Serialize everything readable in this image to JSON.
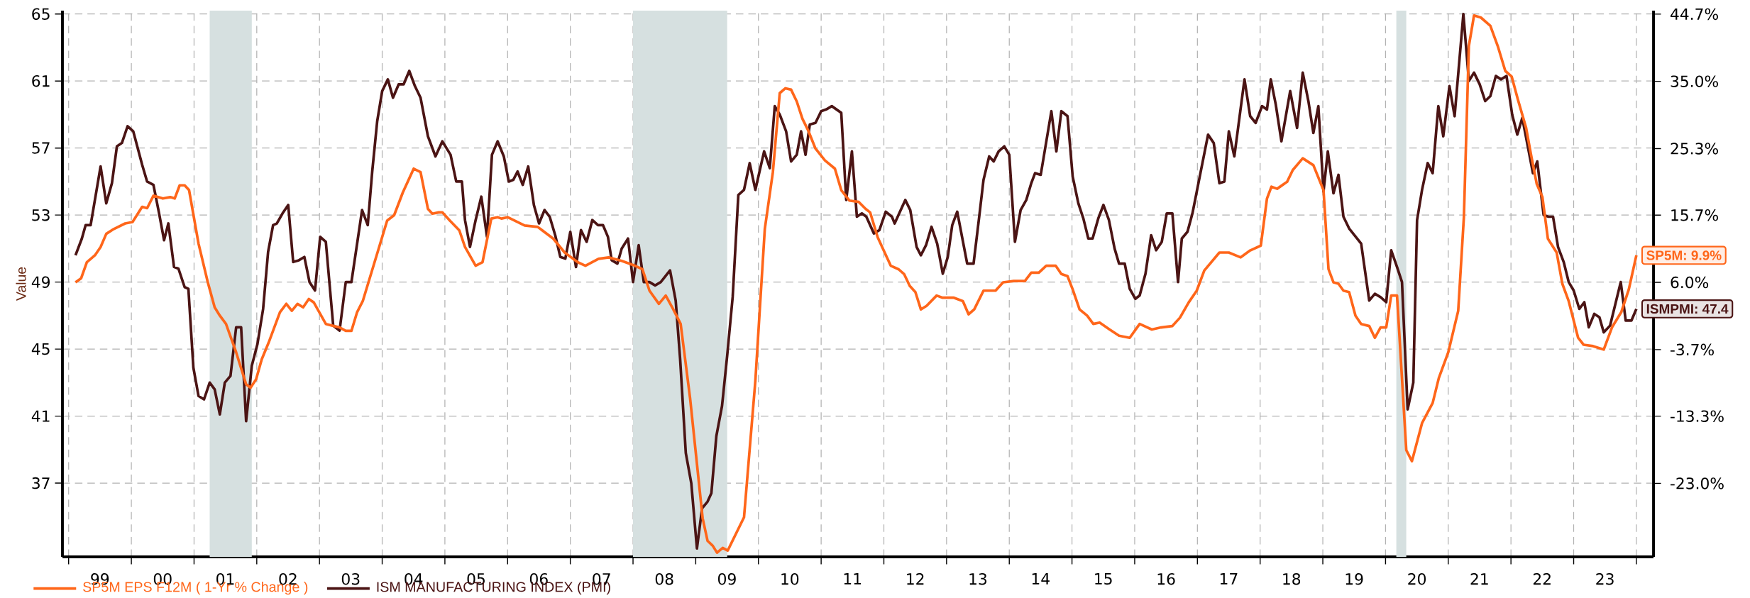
{
  "chart_data": {
    "type": "line",
    "ylabel": "Value",
    "xlim": [
      "1998-11-26",
      "2024-04-10"
    ],
    "ylim": [
      32.6,
      65.2
    ],
    "y2lim": [
      -33.6,
      45.2
    ],
    "xticks": [
      {
        "value": "1999-01-01",
        "label": null
      },
      {
        "value": "2000-01-01",
        "label": null
      },
      {
        "value": "2001-01-01",
        "label": null
      },
      {
        "value": "2002-01-01",
        "label": null
      },
      {
        "value": "2003-01-01",
        "label": null
      },
      {
        "value": "2004-01-01",
        "label": null
      },
      {
        "value": "2005-01-01",
        "label": null
      },
      {
        "value": "2006-01-01",
        "label": null
      },
      {
        "value": "2007-01-01",
        "label": null
      },
      {
        "value": "2008-01-01",
        "label": null
      },
      {
        "value": "2009-01-01",
        "label": null
      },
      {
        "value": "2010-01-01",
        "label": null
      },
      {
        "value": "2011-01-01",
        "label": null
      },
      {
        "value": "2012-01-01",
        "label": null
      },
      {
        "value": "2013-01-01",
        "label": null
      },
      {
        "value": "2014-01-01",
        "label": null
      },
      {
        "value": "2015-01-01",
        "label": null
      },
      {
        "value": "2016-01-01",
        "label": null
      },
      {
        "value": "2017-01-01",
        "label": null
      },
      {
        "value": "2018-01-01",
        "label": null
      },
      {
        "value": "2019-01-01",
        "label": null
      },
      {
        "value": "2020-01-01",
        "label": null
      },
      {
        "value": "2021-01-01",
        "label": null
      },
      {
        "value": "2022-01-01",
        "label": null
      },
      {
        "value": "2023-01-01",
        "label": null
      },
      {
        "value": "2024-01-01",
        "label": null
      },
      {
        "value": "1999-07-02",
        "label": "99"
      },
      {
        "value": "2000-07-02",
        "label": "00"
      },
      {
        "value": "2001-07-02",
        "label": "01"
      },
      {
        "value": "2002-07-02",
        "label": "02"
      },
      {
        "value": "2003-07-02",
        "label": "03"
      },
      {
        "value": "2004-07-02",
        "label": "04"
      },
      {
        "value": "2005-07-02",
        "label": "05"
      },
      {
        "value": "2006-07-02",
        "label": "06"
      },
      {
        "value": "2007-07-02",
        "label": "07"
      },
      {
        "value": "2008-07-02",
        "label": "08"
      },
      {
        "value": "2009-07-02",
        "label": "09"
      },
      {
        "value": "2010-07-02",
        "label": "10"
      },
      {
        "value": "2011-07-02",
        "label": "11"
      },
      {
        "value": "2012-07-02",
        "label": "12"
      },
      {
        "value": "2013-07-02",
        "label": "13"
      },
      {
        "value": "2014-07-02",
        "label": "14"
      },
      {
        "value": "2015-07-02",
        "label": "15"
      },
      {
        "value": "2016-07-02",
        "label": "16"
      },
      {
        "value": "2017-07-02",
        "label": "17"
      },
      {
        "value": "2018-07-02",
        "label": "18"
      },
      {
        "value": "2019-07-02",
        "label": "19"
      },
      {
        "value": "2020-07-02",
        "label": "20"
      },
      {
        "value": "2021-07-02",
        "label": "21"
      },
      {
        "value": "2022-07-02",
        "label": "22"
      },
      {
        "value": "2023-07-02",
        "label": "23"
      }
    ],
    "yticks": [
      37,
      41,
      45,
      49,
      53,
      57,
      61,
      65
    ],
    "y2ticks": [
      {
        "value": 44.7,
        "label": "44.7%"
      },
      {
        "value": 35.0,
        "label": "35.0%"
      },
      {
        "value": 25.3,
        "label": "25.3%"
      },
      {
        "value": 15.7,
        "label": "15.7%"
      },
      {
        "value": 6.0,
        "label": "6.0%"
      },
      {
        "value": -3.7,
        "label": "-3.7%"
      },
      {
        "value": -13.3,
        "label": "-13.3%"
      },
      {
        "value": -23.0,
        "label": "-23.0%"
      }
    ],
    "grid": true,
    "legend": "bottom",
    "marker": "none",
    "line_style": "solid",
    "bands": [
      {
        "axis": "x",
        "from": "2001-04-02",
        "to": "2001-12-03",
        "color": "#d6e0e0"
      },
      {
        "axis": "x",
        "from": "2008-01-01",
        "to": "2009-07-03",
        "color": "#d6e0e0"
      },
      {
        "axis": "x",
        "from": "2020-03-04",
        "to": "2020-05-01",
        "color": "#d6e0e0"
      }
    ],
    "annotations": [
      "SP5M: 9.9%",
      "ISMPMI: 47.4"
    ],
    "series": [
      {
        "name": "SP5M EPS F12M ( 1-Yr % Change )",
        "color": "#ff661a",
        "axis": "y2",
        "x": [
          "1999-02-10",
          "1999-03-15",
          "1999-04-17",
          "1999-06-03",
          "1999-07-06",
          "1999-08-08",
          "1999-09-21",
          "1999-11-26",
          "2000-01-08",
          "2000-03-04",
          "2000-04-02",
          "2000-05-09",
          "2000-07-03",
          "2000-08-15",
          "2000-09-10",
          "2000-10-09",
          "2000-11-07",
          "2000-12-03",
          "2001-01-27",
          "2001-03-22",
          "2001-05-01",
          "2001-05-31",
          "2001-07-06",
          "2001-09-03",
          "2001-10-31",
          "2001-11-26",
          "2001-12-28",
          "2002-01-30",
          "2002-03-11",
          "2002-05-16",
          "2002-06-22",
          "2002-07-24",
          "2002-08-26",
          "2002-09-28",
          "2002-10-31",
          "2002-11-29",
          "2003-02-07",
          "2003-03-26",
          "2003-04-28",
          "2003-06-03",
          "2003-07-06",
          "2003-08-08",
          "2003-09-10",
          "2004-01-30",
          "2004-03-11",
          "2004-05-01",
          "2004-07-03",
          "2004-08-12",
          "2004-09-24",
          "2004-10-20",
          "2004-11-26",
          "2004-12-17",
          "2005-01-30",
          "2005-03-26",
          "2005-04-28",
          "2005-06-29",
          "2005-08-08",
          "2005-09-28",
          "2005-11-04",
          "2005-11-26",
          "2006-01-01",
          "2006-04-10",
          "2006-06-25",
          "2006-09-24",
          "2006-11-29",
          "2007-02-14",
          "2007-03-30",
          "2007-06-14",
          "2007-08-12",
          "2007-10-27",
          "2008-01-12",
          "2008-02-25",
          "2008-04-06",
          "2008-05-31",
          "2008-07-10",
          "2008-08-23",
          "2008-10-05",
          "2008-11-29",
          "2009-02-10",
          "2009-03-11",
          "2009-04-10",
          "2009-05-05",
          "2009-06-07",
          "2009-07-06",
          "2009-10-09",
          "2009-12-14",
          "2010-02-07",
          "2010-03-26",
          "2010-05-05",
          "2010-06-07",
          "2010-07-10",
          "2010-08-12",
          "2010-09-14",
          "2010-10-16",
          "2010-11-29",
          "2011-01-23",
          "2011-03-22",
          "2011-04-28",
          "2011-06-14",
          "2011-08-08",
          "2011-09-17",
          "2011-10-13",
          "2011-11-26",
          "2012-02-10",
          "2012-03-26",
          "2012-04-28",
          "2012-05-31",
          "2012-07-03",
          "2012-08-04",
          "2012-09-06",
          "2012-11-04",
          "2012-12-06",
          "2013-02-10",
          "2013-04-06",
          "2013-05-09",
          "2013-06-11",
          "2013-08-04",
          "2013-10-13",
          "2013-11-26",
          "2014-01-27",
          "2014-04-02",
          "2014-05-09",
          "2014-06-22",
          "2014-08-04",
          "2014-09-28",
          "2014-10-31",
          "2014-12-06",
          "2015-01-05",
          "2015-02-14",
          "2015-03-30",
          "2015-05-05",
          "2015-06-11",
          "2015-08-08",
          "2015-10-02",
          "2015-12-03",
          "2016-01-30",
          "2016-04-10",
          "2016-06-03",
          "2016-08-08",
          "2016-09-21",
          "2016-11-11",
          "2016-12-28",
          "2017-02-10",
          "2017-05-09",
          "2017-07-03",
          "2017-09-10",
          "2017-11-04",
          "2018-01-05",
          "2018-02-10",
          "2018-03-08",
          "2018-04-10",
          "2018-06-07",
          "2018-07-10",
          "2018-09-06",
          "2018-11-07",
          "2019-01-05",
          "2019-02-03",
          "2019-03-04",
          "2019-04-02",
          "2019-05-01",
          "2019-06-03",
          "2019-07-10",
          "2019-08-12",
          "2019-09-28",
          "2019-10-31",
          "2019-12-03",
          "2020-01-05",
          "2020-02-03",
          "2020-03-08",
          "2020-05-01",
          "2020-06-03",
          "2020-08-01",
          "2020-10-02",
          "2020-11-07",
          "2021-01-01",
          "2021-02-28",
          "2021-04-02",
          "2021-05-01",
          "2021-05-31",
          "2021-07-10",
          "2021-09-03",
          "2021-10-16",
          "2021-11-29",
          "2022-01-05",
          "2022-02-10",
          "2022-03-30",
          "2022-04-28",
          "2022-05-31",
          "2022-07-03",
          "2022-08-04",
          "2022-09-24",
          "2022-10-27",
          "2022-12-03",
          "2023-01-27",
          "2023-02-28",
          "2023-04-24",
          "2023-06-25",
          "2023-08-12",
          "2023-10-05",
          "2023-11-18",
          "2024-01-01"
        ],
        "values": [
          6.0,
          6.6,
          8.9,
          9.9,
          11.1,
          13.0,
          13.7,
          14.5,
          14.7,
          16.9,
          16.7,
          18.5,
          18.1,
          18.3,
          18.1,
          20.0,
          20.0,
          19.3,
          11.6,
          6.0,
          2.4,
          1.2,
          0.0,
          -4.1,
          -8.7,
          -9.2,
          -8.0,
          -5.1,
          -2.7,
          1.7,
          2.9,
          1.9,
          2.9,
          2.4,
          3.6,
          3.1,
          0.0,
          -0.3,
          -0.5,
          -1.0,
          -1.0,
          1.7,
          3.3,
          14.9,
          15.7,
          19.0,
          22.4,
          21.9,
          16.6,
          15.9,
          16.1,
          16.1,
          14.9,
          13.5,
          11.1,
          8.4,
          8.9,
          15.2,
          15.4,
          15.2,
          15.4,
          14.2,
          14.0,
          12.3,
          10.3,
          8.9,
          8.4,
          9.4,
          9.6,
          9.1,
          8.4,
          7.9,
          4.8,
          2.9,
          4.1,
          2.1,
          0.0,
          -10.7,
          -28.0,
          -31.3,
          -32.0,
          -33.0,
          -32.3,
          -32.7,
          -27.9,
          -8.2,
          13.7,
          21.9,
          33.3,
          34.0,
          33.8,
          32.1,
          29.6,
          28.0,
          25.3,
          23.6,
          22.4,
          19.3,
          17.8,
          17.6,
          16.6,
          16.1,
          12.5,
          8.4,
          7.9,
          7.2,
          5.5,
          4.6,
          2.1,
          2.6,
          4.1,
          3.8,
          3.8,
          3.3,
          1.4,
          2.1,
          4.8,
          4.8,
          6.0,
          6.2,
          6.2,
          7.4,
          7.4,
          8.4,
          8.4,
          7.2,
          6.9,
          5.0,
          2.1,
          1.2,
          0.0,
          0.2,
          -0.8,
          -1.7,
          -2.0,
          0.0,
          -0.8,
          -0.5,
          -0.3,
          0.9,
          3.1,
          4.8,
          7.7,
          10.3,
          10.3,
          9.6,
          10.6,
          11.3,
          18.1,
          19.8,
          19.5,
          20.5,
          22.2,
          23.9,
          22.9,
          19.3,
          7.9,
          6.0,
          5.8,
          4.8,
          4.6,
          1.2,
          0.0,
          -0.3,
          -2.0,
          -0.5,
          -0.5,
          4.1,
          4.1,
          -18.2,
          -19.8,
          -14.3,
          -11.4,
          -7.8,
          -4.1,
          1.9,
          15.4,
          40.1,
          44.5,
          44.2,
          43.0,
          40.1,
          36.5,
          35.7,
          32.4,
          28.3,
          24.4,
          20.2,
          18.3,
          12.3,
          10.3,
          5.8,
          3.3,
          -2.0,
          -3.0,
          -3.2,
          -3.7,
          -0.5,
          1.7,
          5.0,
          9.9
        ]
      },
      {
        "name": "ISM MANUFACTURING INDEX (PMI)",
        "color": "#4b1414",
        "x": [
          "1999-02-10",
          "1999-03-19",
          "1999-04-10",
          "1999-05-09",
          "1999-07-06",
          "1999-08-08",
          "1999-09-10",
          "1999-10-09",
          "1999-11-07",
          "1999-12-10",
          "2000-01-12",
          "2000-03-04",
          "2000-04-02",
          "2000-05-09",
          "2000-06-11",
          "2000-07-10",
          "2000-08-04",
          "2000-09-06",
          "2000-10-02",
          "2000-11-07",
          "2000-11-29",
          "2000-12-28",
          "2001-01-27",
          "2001-02-28",
          "2001-04-02",
          "2001-05-01",
          "2001-05-31",
          "2001-06-29",
          "2001-08-01",
          "2001-09-03",
          "2001-10-02",
          "2001-10-31",
          "2001-12-03",
          "2002-01-05",
          "2002-02-07",
          "2002-03-08",
          "2002-04-06",
          "2002-04-28",
          "2002-05-31",
          "2002-07-03",
          "2002-08-01",
          "2002-09-03",
          "2002-10-05",
          "2002-11-04",
          "2002-12-06",
          "2003-01-05",
          "2003-02-07",
          "2003-03-22",
          "2003-04-28",
          "2003-06-03",
          "2003-07-06",
          "2003-09-06",
          "2003-10-09",
          "2003-11-04",
          "2003-12-03",
          "2004-01-01",
          "2004-02-03",
          "2004-03-04",
          "2004-04-06",
          "2004-05-05",
          "2004-06-07",
          "2004-07-10",
          "2004-08-12",
          "2004-09-24",
          "2004-11-07",
          "2004-12-17",
          "2005-02-03",
          "2005-03-08",
          "2005-04-10",
          "2005-04-28",
          "2005-05-27",
          "2005-06-29",
          "2005-08-01",
          "2005-09-03",
          "2005-10-02",
          "2005-11-04",
          "2005-12-10",
          "2006-01-08",
          "2006-02-03",
          "2006-02-28",
          "2006-03-30",
          "2006-05-01",
          "2006-06-03",
          "2006-07-03",
          "2006-08-04",
          "2006-09-03",
          "2006-10-05",
          "2006-11-04",
          "2006-12-03",
          "2007-01-01",
          "2007-02-03",
          "2007-03-04",
          "2007-04-06",
          "2007-05-09",
          "2007-06-11",
          "2007-07-10",
          "2007-08-08",
          "2007-08-30",
          "2007-10-02",
          "2007-10-27",
          "2007-12-03",
          "2008-01-01",
          "2008-02-03",
          "2008-03-04",
          "2008-04-06",
          "2008-05-09",
          "2008-06-11",
          "2008-08-04",
          "2008-09-06",
          "2008-10-02",
          "2008-11-04",
          "2008-12-06",
          "2009-01-08",
          "2009-02-07",
          "2009-03-11",
          "2009-04-02",
          "2009-05-01",
          "2009-06-03",
          "2009-07-03",
          "2009-08-04",
          "2009-09-06",
          "2009-10-09",
          "2009-11-11",
          "2009-12-14",
          "2010-02-03",
          "2010-03-08",
          "2010-04-06",
          "2010-05-05",
          "2010-06-11",
          "2010-07-10",
          "2010-08-12",
          "2010-09-06",
          "2010-10-02",
          "2010-10-27",
          "2010-11-29",
          "2011-01-01",
          "2011-01-30",
          "2011-03-04",
          "2011-04-28",
          "2011-05-27",
          "2011-06-29",
          "2011-07-28",
          "2011-08-26",
          "2011-09-21",
          "2011-11-04",
          "2011-12-06",
          "2012-01-12",
          "2012-02-17",
          "2012-03-04",
          "2012-05-05",
          "2012-06-03",
          "2012-07-10",
          "2012-08-04",
          "2012-09-03",
          "2012-10-05",
          "2012-11-07",
          "2012-12-10",
          "2013-01-08",
          "2013-02-03",
          "2013-03-04",
          "2013-05-01",
          "2013-06-07",
          "2013-07-10",
          "2013-08-04",
          "2013-09-06",
          "2013-10-02",
          "2013-10-31",
          "2013-12-03",
          "2014-01-01",
          "2014-02-03",
          "2014-03-08",
          "2014-04-10",
          "2014-05-09",
          "2014-05-31",
          "2014-07-03",
          "2014-09-03",
          "2014-10-02",
          "2014-10-31",
          "2014-12-06",
          "2015-01-05",
          "2015-02-07",
          "2015-03-08",
          "2015-04-06",
          "2015-05-01",
          "2015-06-03",
          "2015-07-03",
          "2015-08-04",
          "2015-09-06",
          "2015-10-02",
          "2015-11-04",
          "2015-12-03",
          "2016-01-05",
          "2016-01-30",
          "2016-03-04",
          "2016-04-06",
          "2016-05-05",
          "2016-06-07",
          "2016-07-06",
          "2016-08-08",
          "2016-09-10",
          "2016-10-02",
          "2016-11-04",
          "2016-12-03",
          "2017-03-04",
          "2017-04-06",
          "2017-05-09",
          "2017-06-07",
          "2017-07-03",
          "2017-08-04",
          "2017-10-02",
          "2017-11-04",
          "2017-12-06",
          "2018-01-12",
          "2018-02-10",
          "2018-03-04",
          "2018-04-02",
          "2018-05-05",
          "2018-06-25",
          "2018-08-04",
          "2018-09-06",
          "2018-10-09",
          "2018-11-07",
          "2018-12-06",
          "2019-01-05",
          "2019-01-30",
          "2019-03-04",
          "2019-04-02",
          "2019-05-01",
          "2019-06-03",
          "2019-08-12",
          "2019-09-28",
          "2019-10-31",
          "2019-12-03",
          "2020-01-05",
          "2020-02-03",
          "2020-03-08",
          "2020-04-06",
          "2020-05-09",
          "2020-06-11",
          "2020-07-03",
          "2020-08-01",
          "2020-09-03",
          "2020-10-02",
          "2020-11-04",
          "2020-12-03",
          "2021-01-08",
          "2021-02-07",
          "2021-03-30",
          "2021-05-01",
          "2021-05-31",
          "2021-07-03",
          "2021-08-04",
          "2021-09-03",
          "2021-10-05",
          "2021-11-04",
          "2021-12-06",
          "2022-01-08",
          "2022-02-07",
          "2022-03-08",
          "2022-05-09",
          "2022-06-03",
          "2022-07-10",
          "2022-08-08",
          "2022-09-03",
          "2022-10-02",
          "2022-11-04",
          "2022-12-03",
          "2023-01-01",
          "2023-02-03",
          "2023-03-04",
          "2023-03-30",
          "2023-05-01",
          "2023-05-31",
          "2023-06-25",
          "2023-08-01",
          "2023-10-02",
          "2023-10-31",
          "2023-12-03",
          "2024-01-01"
        ],
        "values": [
          50.6,
          51.6,
          52.4,
          52.4,
          55.9,
          53.7,
          54.9,
          57.1,
          57.3,
          58.3,
          58.0,
          56.0,
          55.0,
          54.8,
          53.1,
          51.5,
          52.5,
          49.9,
          49.8,
          48.7,
          48.6,
          43.9,
          42.2,
          42.0,
          43.0,
          42.6,
          41.1,
          43.0,
          43.4,
          46.3,
          46.3,
          40.7,
          44.0,
          45.3,
          47.4,
          50.8,
          52.4,
          52.5,
          53.1,
          53.6,
          50.2,
          50.3,
          50.5,
          49.0,
          48.5,
          51.7,
          51.4,
          46.4,
          46.1,
          49.0,
          49.0,
          53.3,
          52.4,
          55.6,
          58.6,
          60.4,
          61.1,
          60.0,
          60.8,
          60.8,
          61.6,
          60.7,
          60.0,
          57.7,
          56.5,
          57.4,
          56.6,
          55.0,
          55.0,
          52.7,
          51.1,
          52.7,
          54.1,
          51.7,
          56.6,
          57.4,
          56.5,
          55.0,
          55.1,
          55.6,
          54.8,
          55.9,
          53.6,
          52.5,
          53.3,
          52.9,
          51.8,
          50.5,
          50.4,
          52.0,
          49.9,
          52.1,
          51.4,
          52.7,
          52.4,
          52.4,
          51.7,
          50.3,
          50.1,
          51.0,
          51.6,
          49.0,
          51.2,
          49.0,
          49.0,
          48.8,
          49.0,
          49.7,
          47.9,
          44.4,
          38.8,
          37.0,
          33.1,
          35.5,
          35.9,
          36.4,
          39.8,
          41.6,
          44.6,
          48.1,
          54.2,
          54.5,
          56.1,
          54.5,
          56.8,
          55.8,
          59.5,
          59.0,
          58.0,
          56.2,
          56.6,
          58.0,
          56.6,
          58.4,
          58.5,
          59.2,
          59.3,
          59.5,
          59.1,
          53.9,
          56.8,
          52.9,
          53.1,
          52.9,
          51.9,
          52.1,
          53.2,
          52.9,
          52.5,
          53.9,
          53.3,
          51.1,
          50.6,
          51.2,
          52.3,
          51.3,
          49.5,
          50.5,
          52.4,
          53.2,
          50.1,
          50.1,
          52.9,
          55.1,
          56.5,
          56.2,
          56.8,
          57.1,
          56.6,
          51.4,
          53.3,
          53.9,
          54.9,
          55.5,
          55.4,
          59.2,
          56.8,
          59.2,
          58.9,
          55.3,
          53.7,
          52.8,
          51.6,
          51.6,
          52.8,
          53.6,
          52.7,
          51.0,
          50.1,
          50.1,
          48.6,
          48.0,
          48.2,
          49.5,
          51.8,
          50.9,
          51.4,
          53.1,
          53.1,
          49.0,
          51.6,
          52.0,
          53.1,
          57.8,
          57.3,
          54.9,
          55.0,
          58.0,
          56.5,
          61.1,
          58.9,
          58.5,
          59.5,
          59.3,
          61.1,
          59.6,
          57.4,
          60.4,
          58.2,
          61.5,
          59.8,
          57.9,
          59.5,
          54.4,
          56.8,
          54.3,
          55.4,
          52.9,
          52.2,
          51.3,
          47.9,
          48.3,
          48.1,
          47.8,
          50.9,
          49.9,
          49.0,
          41.4,
          43.0,
          52.7,
          54.5,
          56.1,
          55.5,
          59.5,
          57.7,
          60.7,
          58.9,
          65.0,
          61.0,
          61.5,
          60.8,
          59.8,
          60.1,
          61.3,
          61.1,
          61.3,
          59.0,
          57.8,
          58.8,
          55.5,
          56.2,
          53.0,
          52.9,
          52.9,
          51.1,
          50.2,
          49.0,
          48.5,
          47.4,
          47.8,
          46.3,
          47.1,
          46.9,
          46.0,
          46.4,
          49.0,
          46.7,
          46.7,
          47.4
        ]
      }
    ]
  }
}
